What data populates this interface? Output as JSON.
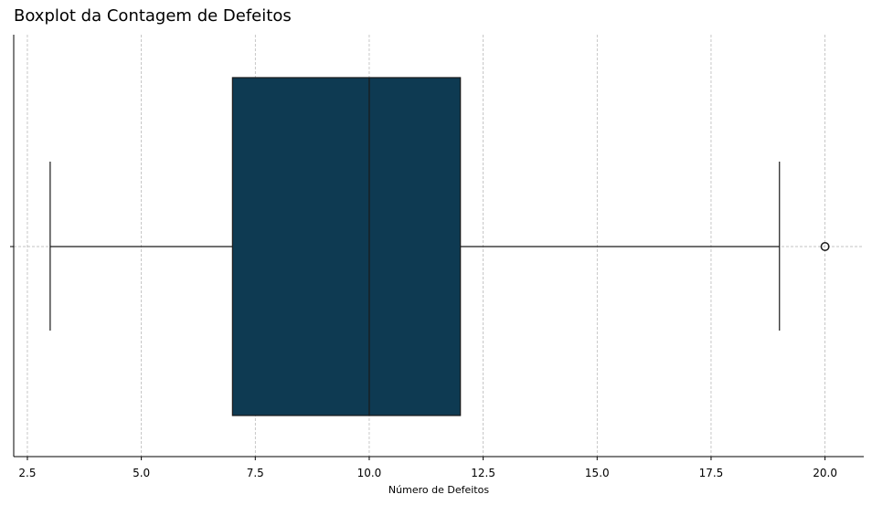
{
  "chart_data": {
    "type": "boxplot",
    "title": "Boxplot da Contagem de Defeitos",
    "xlabel": "Número de Defeitos",
    "ylabel": "",
    "orientation": "horizontal",
    "xlim": [
      2.2,
      20.85
    ],
    "xticks": [
      2.5,
      5.0,
      7.5,
      10.0,
      12.5,
      15.0,
      17.5,
      20.0
    ],
    "xtick_labels": [
      "2.5",
      "5.0",
      "7.5",
      "10.0",
      "12.5",
      "15.0",
      "17.5",
      "20.0"
    ],
    "grid": true,
    "box": {
      "whisker_low": 3,
      "q1": 7,
      "median": 10,
      "q3": 12,
      "whisker_high": 19,
      "outliers": [
        20
      ]
    },
    "colors": {
      "box_fill": "#0e3a52",
      "line": "#1a1a1a",
      "grid": "#b0b0b0"
    }
  }
}
